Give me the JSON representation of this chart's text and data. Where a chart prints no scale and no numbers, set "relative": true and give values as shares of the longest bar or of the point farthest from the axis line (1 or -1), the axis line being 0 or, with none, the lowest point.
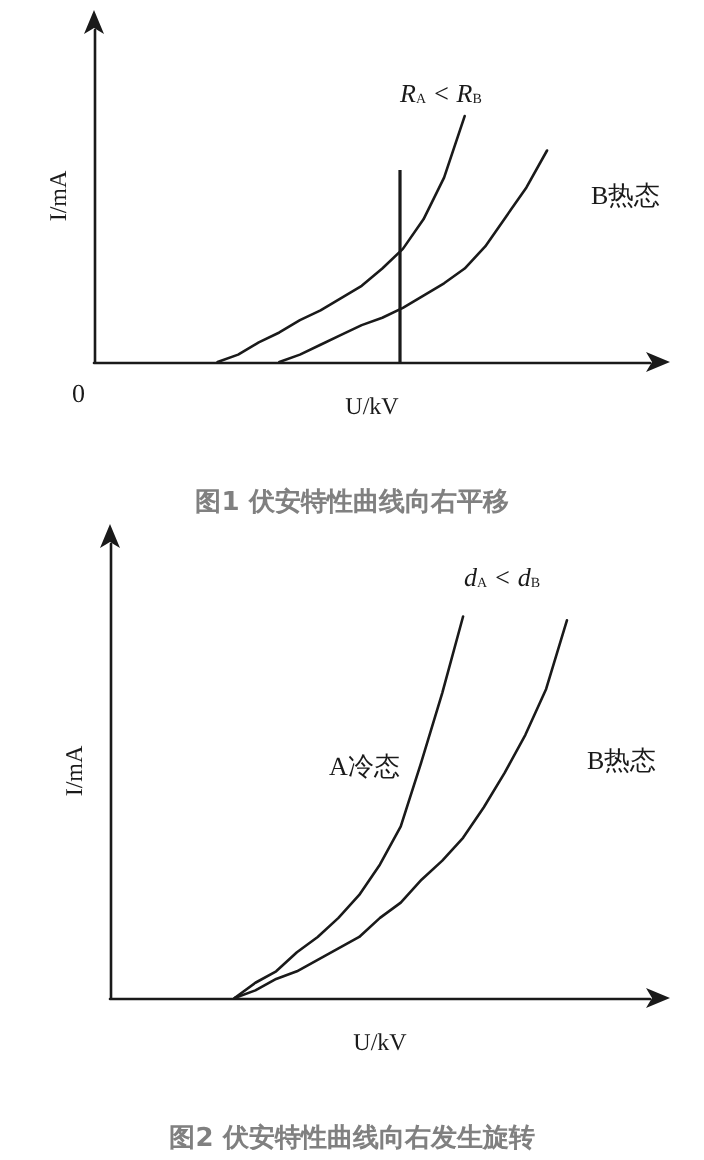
{
  "chart_data": [
    {
      "type": "line",
      "relative": true,
      "title": "图1 伏安特性曲线向右平移",
      "xlabel": "U/kV",
      "ylabel": "I/mA",
      "annotations": [
        "R$_{A}$ < R$_{B}$",
        "0"
      ],
      "categories": [
        null,
        null,
        null,
        null,
        null,
        null,
        null,
        null,
        null,
        null,
        null,
        null,
        null,
        null,
        null,
        null,
        null,
        null,
        null,
        null,
        null,
        null,
        null,
        null,
        null,
        null,
        null,
        null
      ],
      "series": [
        {
          "color": "#1a1a1a",
          "values": [
            null,
            null,
            null,
            null,
            null,
            null,
            0,
            0.03,
            0.08,
            0.12,
            0.17,
            0.21,
            0.26,
            0.31,
            0.38,
            0.46,
            0.58,
            0.75,
            1,
            null,
            null,
            null,
            null,
            null,
            null,
            null,
            null,
            null
          ]
        },
        {
          "name": "B热态",
          "color": "#1a1a1a",
          "values": [
            null,
            null,
            null,
            null,
            null,
            null,
            null,
            null,
            null,
            0,
            0.03,
            0.07,
            0.11,
            0.15,
            0.18,
            0.22,
            0.27,
            0.32,
            0.38,
            0.47,
            0.59,
            0.71,
            0.86,
            null,
            null,
            null,
            null,
            null
          ]
        }
      ],
      "grid": false
    },
    {
      "type": "line",
      "relative": true,
      "title": "图2 伏安特性曲线向右发生旋转",
      "xlabel": "U/kV",
      "ylabel": "I/mA",
      "annotations": [
        "d$_{A}$ < d$_{B}$"
      ],
      "categories": [
        null,
        null,
        null,
        null,
        null,
        null,
        null,
        null,
        null,
        null,
        null,
        null,
        null,
        null,
        null,
        null,
        null,
        null,
        null,
        null,
        null,
        null,
        null,
        null,
        null,
        null,
        null
      ],
      "series": [
        {
          "name": "A冷态",
          "color": "#1a1a1a",
          "values": [
            null,
            null,
            null,
            null,
            null,
            null,
            0,
            0.04,
            0.07,
            0.12,
            0.16,
            0.21,
            0.27,
            0.35,
            0.45,
            0.62,
            0.8,
            1,
            null,
            null,
            null,
            null,
            null,
            null,
            null,
            null,
            null
          ]
        },
        {
          "name": "B热态",
          "color": "#1a1a1a",
          "values": [
            null,
            null,
            null,
            null,
            null,
            null,
            0,
            0.02,
            0.05,
            0.07,
            0.1,
            0.13,
            0.16,
            0.21,
            0.25,
            0.31,
            0.36,
            0.42,
            0.5,
            0.59,
            0.69,
            0.81,
            0.99,
            null,
            null,
            null,
            null
          ]
        }
      ],
      "grid": false
    }
  ]
}
